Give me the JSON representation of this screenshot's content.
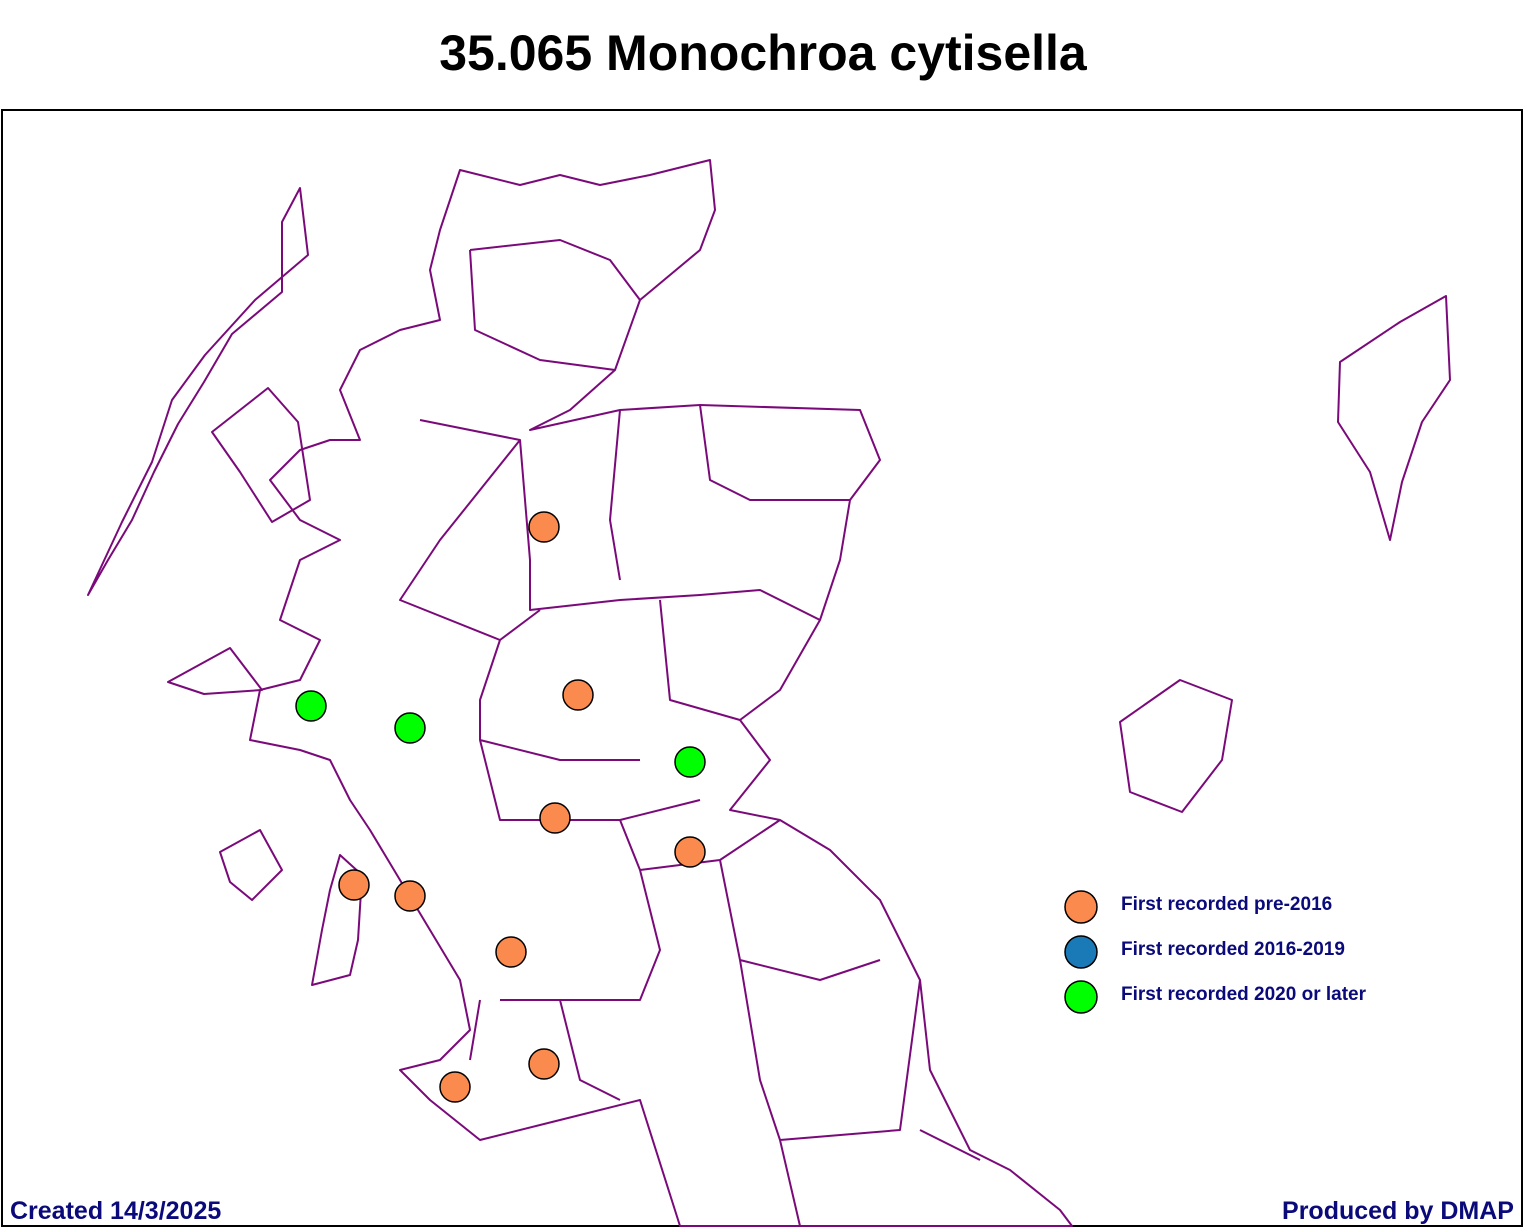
{
  "title": "35.065 Monochroa cytisella",
  "legend": [
    {
      "label": "First recorded pre-2016",
      "color": "#fb8a4e"
    },
    {
      "label": "First recorded 2016-2019",
      "color": "#1a7ab8"
    },
    {
      "label": "First recorded 2020 or later",
      "color": "#00ff00"
    }
  ],
  "footer": {
    "created": "Created 14/3/2025",
    "produced": "Produced by DMAP"
  }
}
